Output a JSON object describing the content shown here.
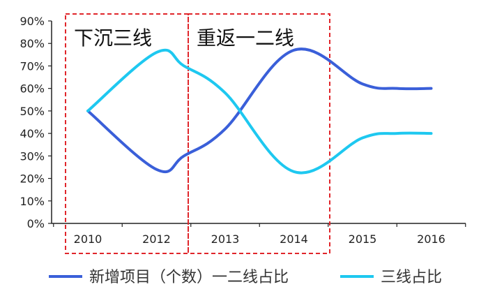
{
  "chart_data": {
    "type": "line",
    "categories": [
      "2010",
      "2012",
      "2013",
      "2014",
      "2015",
      "2016"
    ],
    "y_ticks": [
      "0%",
      "10%",
      "20%",
      "30%",
      "40%",
      "50%",
      "60%",
      "70%",
      "80%",
      "90%"
    ],
    "ylim": [
      0,
      90
    ],
    "grid": false,
    "legend_position": "bottom",
    "series": [
      {
        "name": "新增项目（个数）一二线占比",
        "color": "#3A5FD9",
        "values": [
          50,
          24,
          30,
          42,
          77,
          62,
          60,
          60
        ],
        "x": [
          0,
          1,
          1.4,
          2,
          3,
          4,
          4.5,
          5
        ]
      },
      {
        "name": "三线占比",
        "color": "#1EC8F0",
        "values": [
          50,
          76,
          70,
          58,
          23,
          38,
          40,
          40
        ],
        "x": [
          0,
          1,
          1.4,
          2,
          3,
          4,
          4.5,
          5
        ]
      }
    ],
    "annotations": [
      {
        "text": "下沉三线",
        "x_start": -0.3,
        "x_end": 1.45
      },
      {
        "text": "重返一二线",
        "x_start": 1.45,
        "x_end": 3.45
      }
    ]
  }
}
